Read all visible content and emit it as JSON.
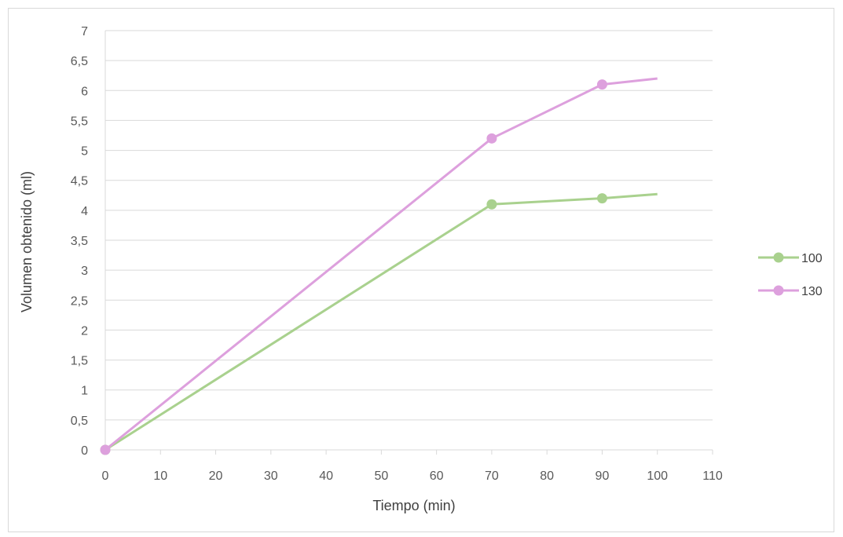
{
  "chart_data": {
    "type": "line",
    "title": "",
    "xlabel": "Tiempo (min)",
    "ylabel": "Volumen obtenido (ml)",
    "xlim": [
      0,
      110
    ],
    "ylim": [
      0,
      7
    ],
    "x_ticks": [
      "0",
      "10",
      "20",
      "30",
      "40",
      "50",
      "60",
      "70",
      "80",
      "90",
      "100",
      "110"
    ],
    "y_ticks": [
      "0",
      "0,5",
      "1",
      "1,5",
      "2",
      "2,5",
      "3",
      "3,5",
      "4",
      "4,5",
      "5",
      "5,5",
      "6",
      "6,5",
      "7"
    ],
    "grid": "horizontal",
    "legend_position": "right",
    "series": [
      {
        "name": "100",
        "color": "#a9d18e",
        "points": [
          {
            "x": 0,
            "y": 0,
            "marker": true
          },
          {
            "x": 70,
            "y": 4.1,
            "marker": true
          },
          {
            "x": 90,
            "y": 4.2,
            "marker": true
          },
          {
            "x": 100,
            "y": 4.27,
            "marker": false
          }
        ]
      },
      {
        "name": "130",
        "color": "#dda0dd",
        "points": [
          {
            "x": 0,
            "y": 0,
            "marker": true
          },
          {
            "x": 70,
            "y": 5.2,
            "marker": true
          },
          {
            "x": 90,
            "y": 6.1,
            "marker": true
          },
          {
            "x": 100,
            "y": 6.2,
            "marker": false
          }
        ]
      }
    ]
  }
}
